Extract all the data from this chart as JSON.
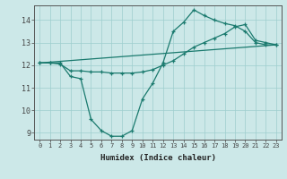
{
  "xlabel": "Humidex (Indice chaleur)",
  "xlim": [
    -0.5,
    23.5
  ],
  "ylim": [
    8.7,
    14.65
  ],
  "yticks": [
    9,
    10,
    11,
    12,
    13,
    14
  ],
  "xticks": [
    0,
    1,
    2,
    3,
    4,
    5,
    6,
    7,
    8,
    9,
    10,
    11,
    12,
    13,
    14,
    15,
    16,
    17,
    18,
    19,
    20,
    21,
    22,
    23
  ],
  "bg_color": "#cce8e8",
  "line_color": "#1a7a6e",
  "lines": [
    {
      "x": [
        0,
        1,
        2,
        3,
        4,
        5,
        6,
        7,
        8,
        9,
        10,
        11,
        12,
        13,
        14,
        15,
        16,
        17,
        18,
        19,
        20,
        21,
        22,
        23
      ],
      "y": [
        12.1,
        12.1,
        12.1,
        11.5,
        11.4,
        9.6,
        9.1,
        8.85,
        8.85,
        9.1,
        10.5,
        11.2,
        12.1,
        13.5,
        13.9,
        14.45,
        14.2,
        14.0,
        13.85,
        13.75,
        13.5,
        13.0,
        12.9,
        12.9
      ]
    },
    {
      "x": [
        0,
        1,
        2,
        3,
        4,
        5,
        6,
        7,
        8,
        9,
        10,
        11,
        12,
        13,
        14,
        15,
        16,
        17,
        18,
        19,
        20,
        21,
        22,
        23
      ],
      "y": [
        12.1,
        12.1,
        12.05,
        11.75,
        11.75,
        11.7,
        11.7,
        11.65,
        11.65,
        11.65,
        11.7,
        11.8,
        12.0,
        12.2,
        12.5,
        12.8,
        13.0,
        13.2,
        13.4,
        13.7,
        13.8,
        13.1,
        13.0,
        12.9
      ]
    },
    {
      "x": [
        0,
        23
      ],
      "y": [
        12.1,
        12.9
      ]
    }
  ]
}
